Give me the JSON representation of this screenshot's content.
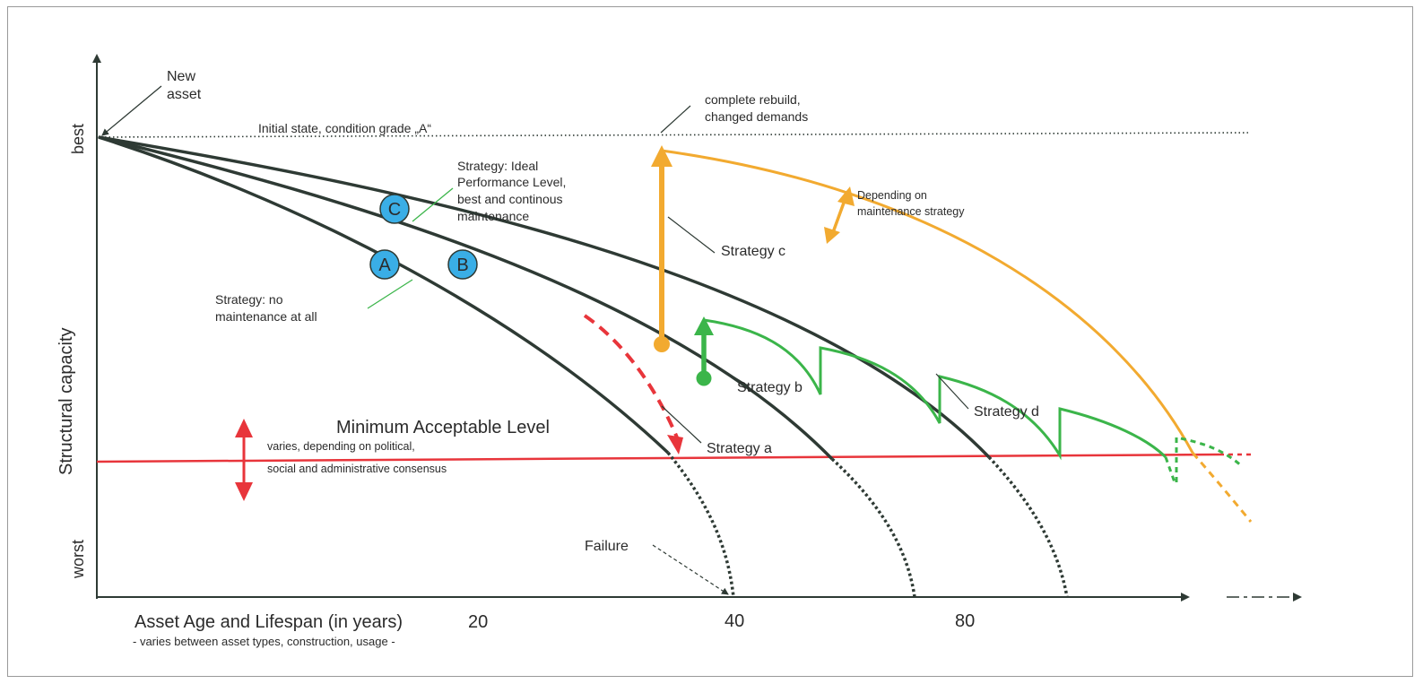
{
  "axes": {
    "y_label": "Structural capacity",
    "y_best": "best",
    "y_worst": "worst",
    "x_label": "Asset Age and Lifespan (in years)",
    "x_sublabel": "- varies between asset types, construction, usage -",
    "x_ticks": [
      "20",
      "40",
      "80"
    ]
  },
  "annotations": {
    "new_asset_line1": "New",
    "new_asset_line2": "asset",
    "initial_state": "Initial state, condition grade „A“",
    "rebuild_line1": "complete rebuild,",
    "rebuild_line2": "changed demands",
    "strategy_ideal_line1": "Strategy: Ideal",
    "strategy_ideal_line2": "Performance Level,",
    "strategy_ideal_line3": "best and continous",
    "strategy_ideal_line4": "maintenance",
    "depending_line1": "Depending on",
    "depending_line2": "maintenance strategy",
    "strategy_c": "Strategy c",
    "strategy_none_line1": "Strategy: no",
    "strategy_none_line2": "maintenance at all",
    "strategy_b": "Strategy b",
    "strategy_d": "Strategy d",
    "strategy_a": "Strategy a",
    "min_level": "Minimum Acceptable Level",
    "min_level_sub1": "varies, depending on political,",
    "min_level_sub2": "social and administrative consensus",
    "failure": "Failure"
  },
  "markers": {
    "a": "A",
    "b": "B",
    "c": "C"
  },
  "colors": {
    "curve": "#2e3a34",
    "min_level": "#e8353b",
    "strategy_a": "#e8353b",
    "strategy_c": "#f2aa30",
    "strategy_d": "#3bb54a",
    "marker_fill": "#3aaee6"
  }
}
